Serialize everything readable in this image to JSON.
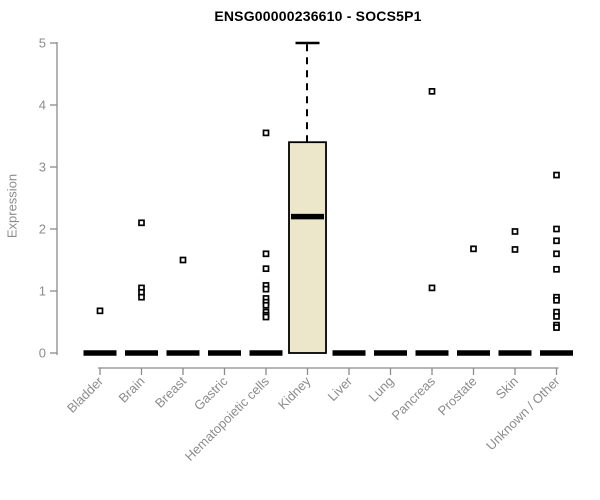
{
  "chart_data": {
    "type": "boxplot",
    "title": "ENSG00000236610 - SOCS5P1",
    "ylabel": "Expression",
    "xlabel": "",
    "ylim": [
      0,
      5
    ],
    "yticks": [
      0,
      1,
      2,
      3,
      4,
      5
    ],
    "grid": false,
    "legend": "none",
    "categories": [
      "Bladder",
      "Brain",
      "Breast",
      "Gastric",
      "Hematopoietic cells",
      "Kidney",
      "Liver",
      "Lung",
      "Pancreas",
      "Prostate",
      "Skin",
      "Unknown / Other"
    ],
    "boxes": [
      {
        "category": "Bladder",
        "q1": 0,
        "median": 0,
        "q3": 0,
        "whisker_low": 0,
        "whisker_high": 0,
        "outliers": [
          0.68
        ]
      },
      {
        "category": "Brain",
        "q1": 0,
        "median": 0,
        "q3": 0,
        "whisker_low": 0,
        "whisker_high": 0,
        "outliers": [
          2.1,
          1.05,
          0.98,
          0.9
        ]
      },
      {
        "category": "Breast",
        "q1": 0,
        "median": 0,
        "q3": 0,
        "whisker_low": 0,
        "whisker_high": 0,
        "outliers": [
          1.5
        ]
      },
      {
        "category": "Gastric",
        "q1": 0,
        "median": 0,
        "q3": 0,
        "whisker_low": 0,
        "whisker_high": 0,
        "outliers": []
      },
      {
        "category": "Hematopoietic cells",
        "q1": 0,
        "median": 0,
        "q3": 0,
        "whisker_low": 0,
        "whisker_high": 0,
        "outliers": [
          3.55,
          1.6,
          1.36,
          1.09,
          1.03,
          0.88,
          0.82,
          0.77,
          0.66,
          0.61,
          0.58
        ]
      },
      {
        "category": "Kidney",
        "q1": 0,
        "median": 2.2,
        "q3": 3.4,
        "whisker_low": 0,
        "whisker_high": 5.0,
        "outliers": []
      },
      {
        "category": "Liver",
        "q1": 0,
        "median": 0,
        "q3": 0,
        "whisker_low": 0,
        "whisker_high": 0,
        "outliers": []
      },
      {
        "category": "Lung",
        "q1": 0,
        "median": 0,
        "q3": 0,
        "whisker_low": 0,
        "whisker_high": 0,
        "outliers": []
      },
      {
        "category": "Pancreas",
        "q1": 0,
        "median": 0,
        "q3": 0,
        "whisker_low": 0,
        "whisker_high": 0,
        "outliers": [
          4.22,
          1.05
        ]
      },
      {
        "category": "Prostate",
        "q1": 0,
        "median": 0,
        "q3": 0,
        "whisker_low": 0,
        "whisker_high": 0,
        "outliers": [
          1.68
        ]
      },
      {
        "category": "Skin",
        "q1": 0,
        "median": 0,
        "q3": 0,
        "whisker_low": 0,
        "whisker_high": 0,
        "outliers": [
          1.96,
          1.67
        ]
      },
      {
        "category": "Unknown / Other",
        "q1": 0,
        "median": 0,
        "q3": 0,
        "whisker_low": 0,
        "whisker_high": 0,
        "outliers": [
          2.87,
          2.0,
          1.81,
          1.6,
          1.35,
          0.9,
          0.85,
          0.66,
          0.59,
          0.45,
          0.41
        ]
      }
    ],
    "colors": {
      "box_fill": "#ece6cb",
      "box_stroke": "#000000",
      "median": "#000000",
      "whisker": "#000000",
      "outlier_stroke": "#000000",
      "outlier_fill": "#ffffff",
      "axis": "#8c8c8c",
      "tick_label": "#8c8c8c",
      "title": "#000000",
      "background": "#ffffff"
    }
  }
}
